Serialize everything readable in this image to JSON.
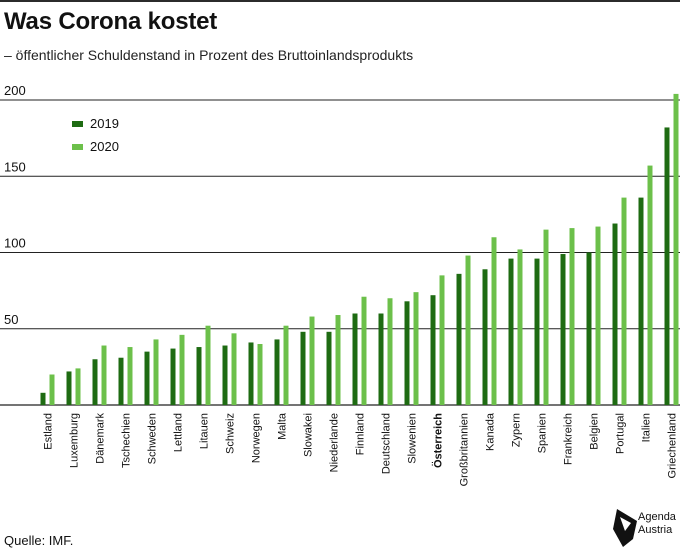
{
  "title": "Was Corona kostet",
  "subtitle": "– öffentlicher Schuldenstand in Prozent des Bruttoinlandsprodukts",
  "source": "Quelle: IMF.",
  "logo": {
    "line1": "Agenda",
    "line2": "Austria"
  },
  "colors": {
    "y2019": "#1e6b12",
    "y2020": "#6cc04a",
    "grid": "#222222"
  },
  "chart_data": {
    "type": "bar",
    "title": "Was Corona kostet",
    "subtitle": "– öffentlicher Schuldenstand in Prozent des Bruttoinlandsprodukts",
    "xlabel": "",
    "ylabel": "",
    "ylim": [
      0,
      200
    ],
    "yticks": [
      50,
      100,
      150,
      200
    ],
    "grid": true,
    "legend_position": "top-left",
    "highlight_category": "Österreich",
    "categories": [
      "Estland",
      "Luxemburg",
      "Dänemark",
      "Tschechien",
      "Schweden",
      "Lettland",
      "Litauen",
      "Schweiz",
      "Norwegen",
      "Malta",
      "Slowakei",
      "Niederlande",
      "Finnland",
      "Deutschland",
      "Slowenien",
      "Österreich",
      "Großbritannien",
      "Kanada",
      "Zypern",
      "Spanien",
      "Frankreich",
      "Belgien",
      "Portugal",
      "Italien",
      "Griechenland"
    ],
    "series": [
      {
        "name": "2019",
        "values": [
          8,
          22,
          30,
          31,
          35,
          37,
          38,
          39,
          41,
          43,
          48,
          48,
          60,
          60,
          68,
          72,
          86,
          89,
          96,
          96,
          99,
          100,
          119,
          136,
          182
        ]
      },
      {
        "name": "2020",
        "values": [
          20,
          24,
          39,
          38,
          43,
          46,
          52,
          47,
          40,
          52,
          58,
          59,
          71,
          70,
          74,
          85,
          98,
          110,
          102,
          115,
          116,
          117,
          136,
          157,
          204
        ]
      }
    ]
  }
}
